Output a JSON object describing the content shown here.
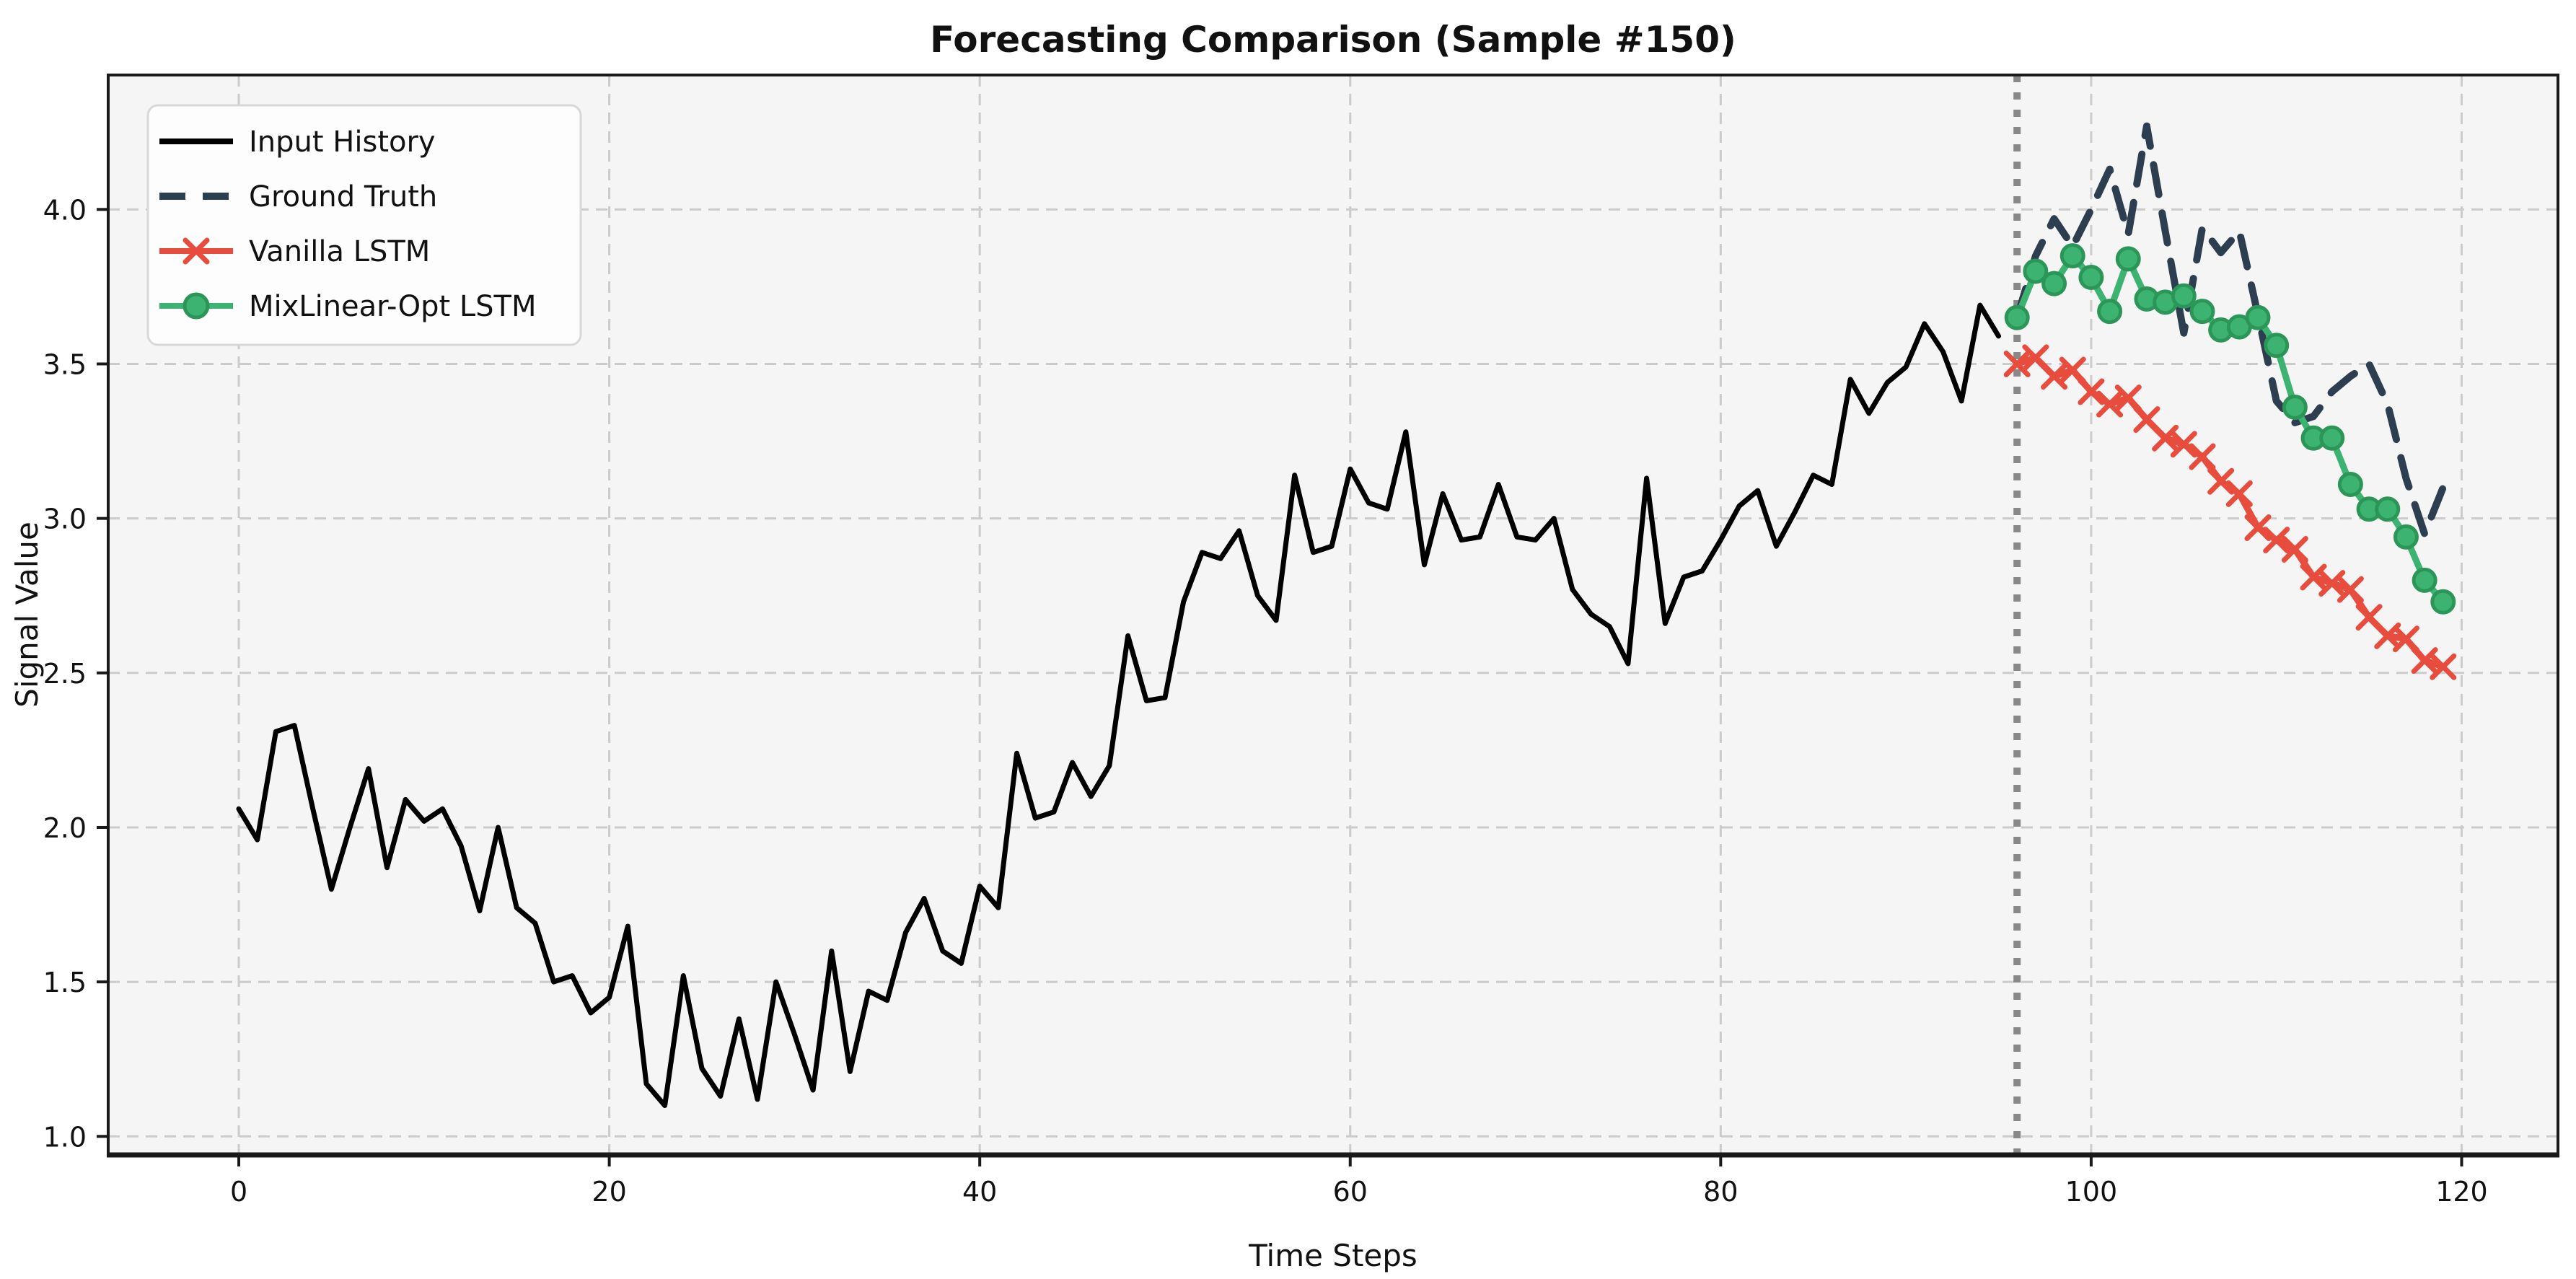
{
  "chart_data": {
    "type": "line",
    "title": "Forecasting Comparison (Sample #150)",
    "xlabel": "Time Steps",
    "ylabel": "Signal Value",
    "xlim": [
      -7.05,
      125.2
    ],
    "ylim": [
      0.94,
      4.435
    ],
    "x_ticks": [
      "0",
      "20",
      "40",
      "60",
      "80",
      "100",
      "120"
    ],
    "x_tick_values": [
      0,
      20,
      40,
      60,
      80,
      100,
      120
    ],
    "y_ticks": [
      "1.0",
      "1.5",
      "2.0",
      "2.5",
      "3.0",
      "3.5",
      "4.0"
    ],
    "y_tick_values": [
      1.0,
      1.5,
      2.0,
      2.5,
      3.0,
      3.5,
      4.0
    ],
    "grid": true,
    "legend_position": "upper left",
    "vline": {
      "x": 96,
      "color": "#888888",
      "style": "dotted"
    },
    "series": [
      {
        "name": "Input History",
        "color": "#000000",
        "style": "solid",
        "marker": "none",
        "x_start": 0,
        "values": [
          2.06,
          1.96,
          2.31,
          2.33,
          2.06,
          1.8,
          2.0,
          2.19,
          1.87,
          2.09,
          2.02,
          2.06,
          1.94,
          1.73,
          2.0,
          1.74,
          1.69,
          1.5,
          1.52,
          1.4,
          1.45,
          1.68,
          1.17,
          1.1,
          1.52,
          1.22,
          1.13,
          1.38,
          1.12,
          1.5,
          1.33,
          1.15,
          1.6,
          1.21,
          1.47,
          1.44,
          1.66,
          1.77,
          1.6,
          1.56,
          1.81,
          1.74,
          2.24,
          2.03,
          2.05,
          2.21,
          2.1,
          2.2,
          2.62,
          2.41,
          2.42,
          2.73,
          2.89,
          2.87,
          2.96,
          2.75,
          2.67,
          3.14,
          2.89,
          2.91,
          3.16,
          3.05,
          3.03,
          3.28,
          2.85,
          3.08,
          2.93,
          2.94,
          3.11,
          2.94,
          2.93,
          3.0,
          2.77,
          2.69,
          2.65,
          2.53,
          3.13,
          2.66,
          2.81,
          2.83,
          2.93,
          3.04,
          3.09,
          2.91,
          3.02,
          3.14,
          3.11,
          3.45,
          3.34,
          3.44,
          3.49,
          3.63,
          3.54,
          3.38,
          3.69,
          3.59
        ]
      },
      {
        "name": "Ground Truth",
        "color": "#2c3e50",
        "style": "dashed",
        "marker": "none",
        "x_start": 96,
        "values": [
          3.65,
          3.85,
          3.97,
          3.88,
          4.0,
          4.13,
          3.92,
          4.27,
          3.93,
          3.6,
          3.94,
          3.86,
          3.93,
          3.66,
          3.38,
          3.31,
          3.33,
          3.41,
          3.46,
          3.5,
          3.37,
          3.13,
          2.95,
          3.1
        ]
      },
      {
        "name": "Vanilla LSTM",
        "color": "#e74c3c",
        "style": "solid",
        "marker": "x",
        "x_start": 96,
        "values": [
          3.5,
          3.52,
          3.46,
          3.48,
          3.41,
          3.37,
          3.39,
          3.32,
          3.26,
          3.24,
          3.2,
          3.12,
          3.08,
          2.97,
          2.93,
          2.9,
          2.81,
          2.79,
          2.77,
          2.68,
          2.62,
          2.61,
          2.54,
          2.52
        ]
      },
      {
        "name": "MixLinear-Opt LSTM",
        "color": "#3cb371",
        "marker_edge": "#2c9658",
        "style": "solid",
        "marker": "circle",
        "x_start": 96,
        "values": [
          3.65,
          3.8,
          3.76,
          3.85,
          3.78,
          3.67,
          3.84,
          3.71,
          3.7,
          3.72,
          3.67,
          3.61,
          3.62,
          3.65,
          3.56,
          3.36,
          3.26,
          3.26,
          3.11,
          3.03,
          3.03,
          2.94,
          2.8,
          2.73
        ]
      }
    ],
    "colors": {
      "axes_background": "#f5f5f6",
      "figure_background": "#ffffff",
      "gridline": "#cbcbcb",
      "spine": "#1a1a1a",
      "legend_background": "#fdfdfd",
      "legend_border": "#d8d8d8"
    }
  }
}
